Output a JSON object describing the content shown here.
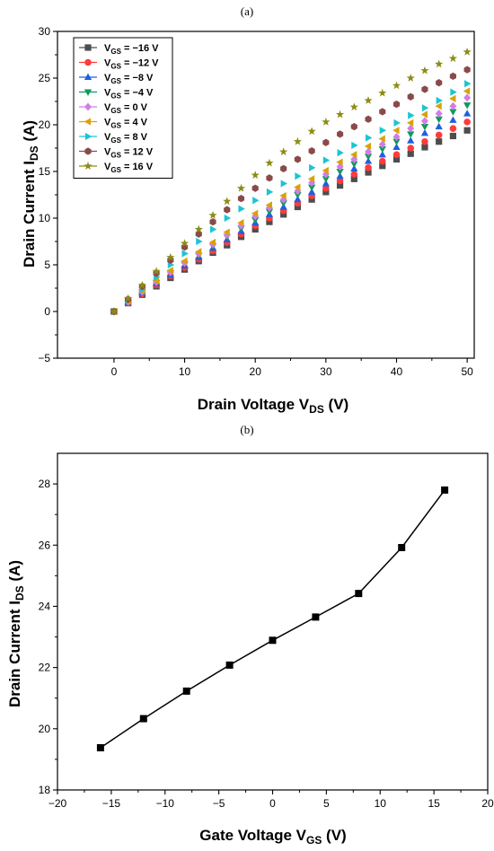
{
  "chart_data": [
    {
      "panel_label": "(a)",
      "type": "scatter",
      "xlabel": {
        "main": "Drain Voltage  V",
        "sub": "DS",
        "unit": "  (V)"
      },
      "ylabel": {
        "main": "Drain Current  I",
        "sub": "DS",
        "unit": " (A)"
      },
      "xlim": [
        -8,
        51
      ],
      "ylim": [
        -5,
        30
      ],
      "xticks": [
        0,
        10,
        20,
        30,
        40,
        50
      ],
      "yticks": [
        -5,
        0,
        5,
        10,
        15,
        20,
        25,
        30
      ],
      "legend_position": "top-left",
      "x": [
        0,
        2,
        4,
        6,
        8,
        10,
        12,
        14,
        16,
        18,
        20,
        22,
        24,
        26,
        28,
        30,
        32,
        34,
        36,
        38,
        40,
        42,
        44,
        46,
        48,
        50
      ],
      "series": [
        {
          "name_prefix": "V",
          "name_sub": "GS",
          "name_suffix": " = −16 V",
          "color": "#4d4d4d",
          "marker": "square",
          "values": [
            0,
            0.9,
            1.8,
            2.7,
            3.6,
            4.5,
            5.4,
            6.3,
            7.1,
            8.0,
            8.8,
            9.6,
            10.4,
            11.2,
            12.0,
            12.8,
            13.5,
            14.2,
            14.9,
            15.6,
            16.3,
            16.9,
            17.6,
            18.2,
            18.8,
            19.4
          ]
        },
        {
          "name_prefix": "V",
          "name_sub": "GS",
          "name_suffix": " = −12 V",
          "color": "#ff3b3b",
          "marker": "circle",
          "values": [
            0,
            0.95,
            1.9,
            2.85,
            3.8,
            4.7,
            5.6,
            6.5,
            7.4,
            8.3,
            9.2,
            10.0,
            10.8,
            11.6,
            12.4,
            13.2,
            14.0,
            14.7,
            15.4,
            16.1,
            16.8,
            17.5,
            18.2,
            18.9,
            19.6,
            20.3
          ]
        },
        {
          "name_prefix": "V",
          "name_sub": "GS",
          "name_suffix": " = −8 V",
          "color": "#1f5fe0",
          "marker": "triangle-up",
          "values": [
            0,
            1.0,
            2.0,
            3.0,
            3.9,
            4.9,
            5.8,
            6.8,
            7.7,
            8.6,
            9.5,
            10.4,
            11.2,
            12.0,
            12.8,
            13.7,
            14.5,
            15.3,
            16.1,
            16.8,
            17.6,
            18.3,
            19.1,
            19.8,
            20.5,
            21.2
          ]
        },
        {
          "name_prefix": "V",
          "name_sub": "GS",
          "name_suffix": " = −4 V",
          "color": "#0f9a5a",
          "marker": "triangle-down",
          "values": [
            0,
            1.0,
            2.1,
            3.1,
            4.1,
            5.1,
            6.0,
            7.0,
            8.0,
            8.9,
            9.8,
            10.7,
            11.6,
            12.5,
            13.3,
            14.2,
            15.0,
            15.8,
            16.6,
            17.4,
            18.2,
            19.0,
            19.8,
            20.6,
            21.4,
            22.1
          ]
        },
        {
          "name_prefix": "V",
          "name_sub": "GS",
          "name_suffix": " = 0 V",
          "color": "#d27ce8",
          "marker": "diamond",
          "values": [
            0,
            1.05,
            2.1,
            3.15,
            4.2,
            5.2,
            6.2,
            7.2,
            8.2,
            9.2,
            10.2,
            11.1,
            12.0,
            12.9,
            13.8,
            14.7,
            15.5,
            16.3,
            17.1,
            17.9,
            18.7,
            19.6,
            20.4,
            21.2,
            22.0,
            22.9
          ]
        },
        {
          "name_prefix": "V",
          "name_sub": "GS",
          "name_suffix": " = 4 V",
          "color": "#d9a20c",
          "marker": "triangle-left",
          "values": [
            0,
            1.1,
            2.2,
            3.3,
            4.4,
            5.4,
            6.4,
            7.4,
            8.5,
            9.5,
            10.5,
            11.4,
            12.4,
            13.3,
            14.2,
            15.1,
            16.0,
            16.8,
            17.7,
            18.5,
            19.4,
            20.2,
            21.1,
            22.0,
            22.8,
            23.6
          ]
        },
        {
          "name_prefix": "V",
          "name_sub": "GS",
          "name_suffix": " = 8 V",
          "color": "#1cc4d4",
          "marker": "triangle-right",
          "values": [
            0,
            1.2,
            2.4,
            3.7,
            5.0,
            6.2,
            7.5,
            8.8,
            10.0,
            11.0,
            11.9,
            12.8,
            13.7,
            14.5,
            15.4,
            16.2,
            17.0,
            17.8,
            18.6,
            19.4,
            20.2,
            21.0,
            21.8,
            22.6,
            23.5,
            24.4
          ]
        },
        {
          "name_prefix": "V",
          "name_sub": "GS",
          "name_suffix": " = 12 V",
          "color": "#8b4a4a",
          "marker": "hexagon",
          "values": [
            0,
            1.3,
            2.7,
            4.1,
            5.5,
            6.9,
            8.3,
            9.6,
            10.9,
            12.1,
            13.2,
            14.3,
            15.3,
            16.3,
            17.2,
            18.1,
            19.0,
            19.8,
            20.6,
            21.4,
            22.2,
            23.0,
            23.8,
            24.5,
            25.2,
            25.9
          ]
        },
        {
          "name_prefix": "V",
          "name_sub": "GS",
          "name_suffix": " = 16 V",
          "color": "#8c8c14",
          "marker": "star",
          "values": [
            0,
            1.4,
            2.8,
            4.3,
            5.8,
            7.3,
            8.8,
            10.3,
            11.8,
            13.2,
            14.6,
            15.9,
            17.1,
            18.2,
            19.3,
            20.3,
            21.1,
            21.9,
            22.6,
            23.4,
            24.2,
            25.0,
            25.8,
            26.5,
            27.1,
            27.8
          ]
        }
      ]
    },
    {
      "panel_label": "(b)",
      "type": "line",
      "xlabel": {
        "main": "Gate Voltage  V",
        "sub": "GS",
        "unit": "  (V)"
      },
      "ylabel": {
        "main": "Drain Current  I",
        "sub": "DS",
        "unit": " (A)"
      },
      "xlim": [
        -20,
        20
      ],
      "ylim": [
        18,
        29
      ],
      "xticks": [
        -20,
        -15,
        -10,
        -5,
        0,
        5,
        10,
        15,
        20
      ],
      "xtick_labels": [
        "−20",
        "−15",
        "−10",
        "−5",
        "0",
        "5",
        "10",
        "15",
        "20"
      ],
      "yticks": [
        18,
        20,
        22,
        24,
        26,
        28
      ],
      "marker": "square",
      "color": "#000000",
      "x": [
        -16,
        -12,
        -8,
        -4,
        0,
        4,
        8,
        12,
        16
      ],
      "values": [
        19.38,
        20.33,
        21.23,
        22.08,
        22.89,
        23.65,
        24.42,
        25.92,
        27.8
      ]
    }
  ]
}
